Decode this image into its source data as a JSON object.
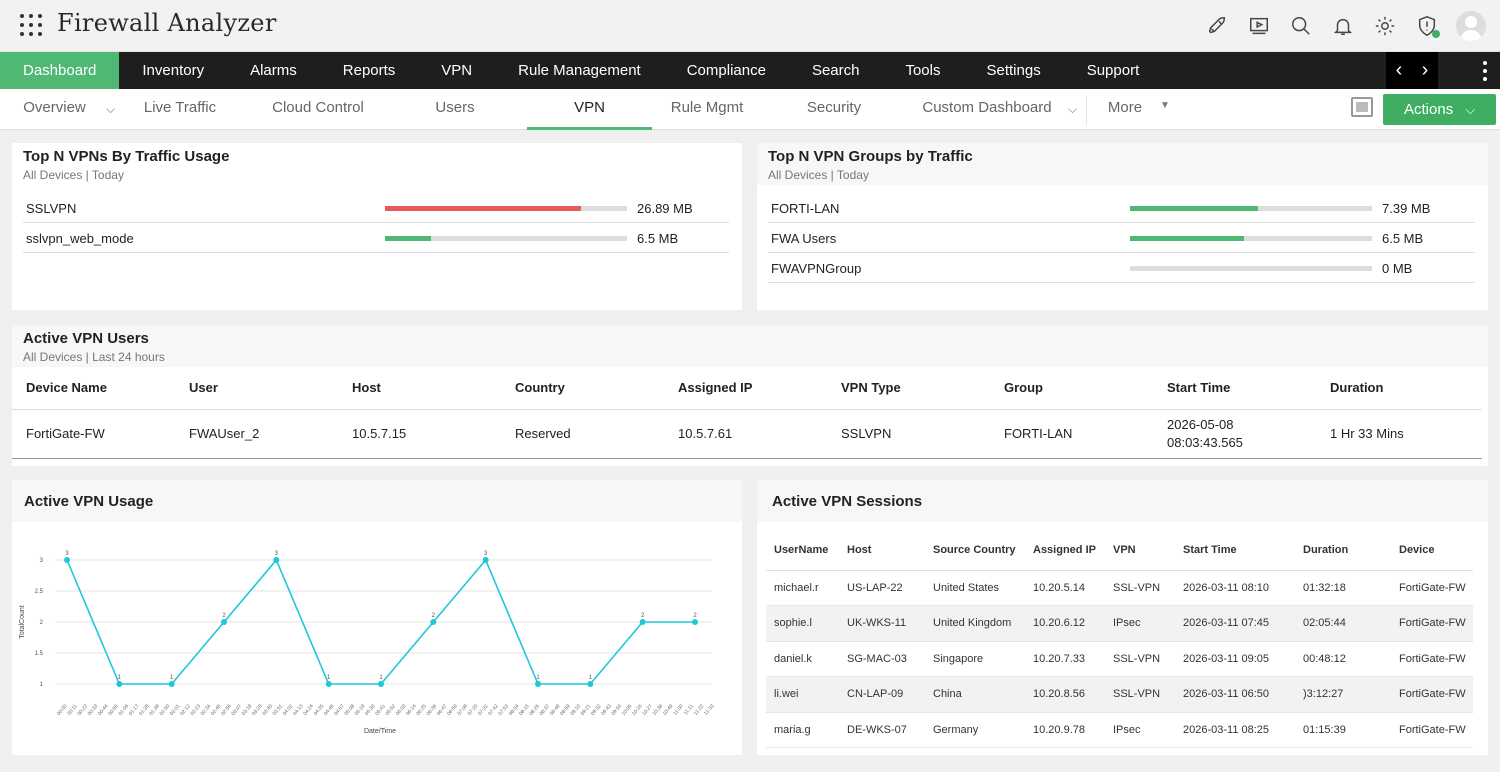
{
  "app": {
    "title": "Firewall Analyzer"
  },
  "top_icons": [
    "rocket-icon",
    "video-icon",
    "search-icon",
    "bell-icon",
    "gear-icon",
    "shield-alert-icon",
    "user-icon"
  ],
  "main_nav": [
    "Dashboard",
    "Inventory",
    "Alarms",
    "Reports",
    "VPN",
    "Rule Management",
    "Compliance",
    "Search",
    "Tools",
    "Settings",
    "Support"
  ],
  "sub_nav": {
    "overview": "Overview",
    "live_traffic": "Live Traffic",
    "cloud_control": "Cloud Control",
    "users": "Users",
    "vpn": "VPN",
    "rule_mgmt": "Rule Mgmt",
    "security": "Security",
    "custom_dashboard": "Custom Dashboard",
    "more": "More",
    "actions": "Actions"
  },
  "top_vpns": {
    "title": "Top N VPNs By Traffic Usage",
    "subtitle": "All Devices | Today",
    "rows": [
      {
        "name": "SSLVPN",
        "value": "26.89 MB",
        "fraction": 0.81,
        "color": "#e85a5a"
      },
      {
        "name": "sslvpn_web_mode",
        "value": "6.5 MB",
        "fraction": 0.19,
        "color": "#4fb873"
      }
    ]
  },
  "top_groups": {
    "title": "Top N VPN Groups by Traffic",
    "subtitle": "All Devices | Today",
    "rows": [
      {
        "name": "FORTI-LAN",
        "value": "7.39 MB",
        "fraction": 0.53,
        "color": "#4fb873"
      },
      {
        "name": "FWA Users",
        "value": "6.5 MB",
        "fraction": 0.47,
        "color": "#4fb873"
      },
      {
        "name": "FWAVPNGroup",
        "value": "0 MB",
        "fraction": 0,
        "color": "#4fb873"
      }
    ]
  },
  "active_users": {
    "title": "Active VPN Users",
    "subtitle": "All Devices | Last 24 hours",
    "headers": [
      "Device Name",
      "User",
      "Host",
      "Country",
      "Assigned IP",
      "VPN Type",
      "Group",
      "Start Time",
      "Duration"
    ],
    "row": {
      "device": "FortiGate-FW",
      "user": "FWAUser_2",
      "host": "10.5.7.15",
      "country": "Reserved",
      "ip": "10.5.7.61",
      "vpn_type": "SSLVPN",
      "group": "FORTI-LAN",
      "start_date": "2026-05-08",
      "start_time": "08:03:43.565",
      "duration": "1 Hr 33 Mins"
    }
  },
  "usage": {
    "title": "Active VPN Usage"
  },
  "chart_data": {
    "type": "line",
    "xlabel": "Date/Time",
    "ylabel": "TotalCount",
    "ylim": [
      1,
      3
    ],
    "yticks": [
      "1",
      "1.5",
      "2",
      "2.5",
      "3"
    ],
    "points": [
      3,
      1,
      1,
      2,
      3,
      1,
      1,
      2,
      3,
      1,
      1,
      2,
      2
    ],
    "xticks": [
      "00:00",
      "00:11",
      "00:22",
      "00:33",
      "00:44",
      "00:55",
      "01:06",
      "01:17",
      "01:28",
      "01:39",
      "01:50",
      "02:01",
      "02:12",
      "02:23",
      "02:34",
      "02:45",
      "02:56",
      "03:07",
      "03:18",
      "03:29",
      "03:40",
      "03:51",
      "04:02",
      "04:13",
      "04:24",
      "04:35",
      "04:46",
      "04:57",
      "05:08",
      "05:19",
      "05:30",
      "05:41",
      "05:52",
      "06:03",
      "06:14",
      "06:25",
      "06:36",
      "06:47",
      "06:58",
      "07:09",
      "07:20",
      "07:31",
      "07:42",
      "07:53",
      "08:04",
      "08:15",
      "08:26",
      "08:37",
      "08:48",
      "08:59",
      "09:10",
      "09:21",
      "09:32",
      "09:43",
      "09:54",
      "10:05",
      "10:16",
      "10:27",
      "10:38",
      "10:49",
      "11:00",
      "11:11",
      "11:22",
      "11:33"
    ]
  },
  "sessions": {
    "title": "Active VPN Sessions",
    "headers": [
      "UserName",
      "Host",
      "Source Country",
      "Assigned IP",
      "VPN",
      "Start Time",
      "Duration",
      "Device"
    ],
    "rows": [
      [
        "michael.r",
        "US-LAP-22",
        "United States",
        "10.20.5.14",
        "SSL-VPN",
        "2026-03-11 08:10",
        "01:32:18",
        "FortiGate-FW"
      ],
      [
        "sophie.l",
        "UK-WKS-11",
        "United Kingdom",
        "10.20.6.12",
        "IPsec",
        "2026-03-11 07:45",
        "02:05:44",
        "FortiGate-FW"
      ],
      [
        "daniel.k",
        "SG-MAC-03",
        "Singapore",
        "10.20.7.33",
        "SSL-VPN",
        "2026-03-11 09:05",
        "00:48:12",
        "FortiGate-FW"
      ],
      [
        "li.wei",
        "CN-LAP-09",
        "China",
        "10.20.8.56",
        "SSL-VPN",
        "2026-03-11 06:50",
        ")3:12:27",
        "FortiGate-FW"
      ],
      [
        "maria.g",
        "DE-WKS-07",
        "Germany",
        "10.20.9.78",
        "IPsec",
        "2026-03-11 08:25",
        "01:15:39",
        "FortiGate-FW"
      ]
    ]
  }
}
